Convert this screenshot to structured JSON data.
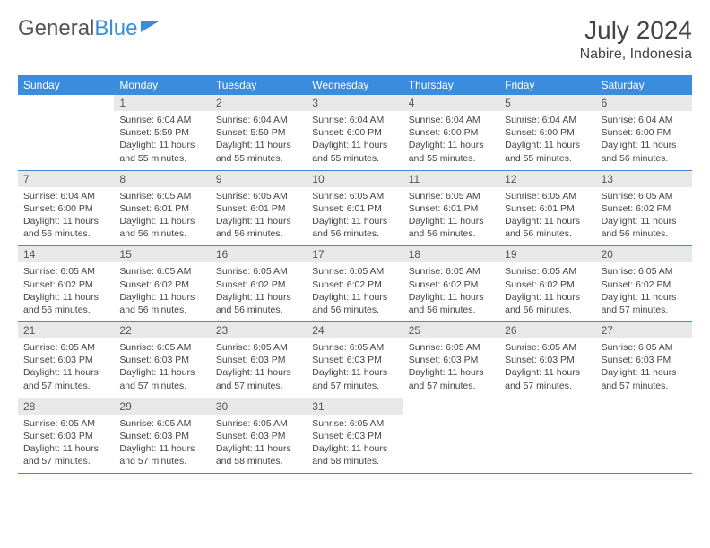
{
  "logo": {
    "part1": "General",
    "part2": "Blue"
  },
  "title": "July 2024",
  "location": "Nabire, Indonesia",
  "colors": {
    "header_bg": "#3a8dde",
    "daynum_bg": "#e8e8e8",
    "text": "#444444",
    "border": "#3a8dde"
  },
  "weekdays": [
    "Sunday",
    "Monday",
    "Tuesday",
    "Wednesday",
    "Thursday",
    "Friday",
    "Saturday"
  ],
  "weeks": [
    [
      {
        "empty": true
      },
      {
        "n": "1",
        "sr": "Sunrise: 6:04 AM",
        "ss": "Sunset: 5:59 PM",
        "dl": "Daylight: 11 hours and 55 minutes."
      },
      {
        "n": "2",
        "sr": "Sunrise: 6:04 AM",
        "ss": "Sunset: 5:59 PM",
        "dl": "Daylight: 11 hours and 55 minutes."
      },
      {
        "n": "3",
        "sr": "Sunrise: 6:04 AM",
        "ss": "Sunset: 6:00 PM",
        "dl": "Daylight: 11 hours and 55 minutes."
      },
      {
        "n": "4",
        "sr": "Sunrise: 6:04 AM",
        "ss": "Sunset: 6:00 PM",
        "dl": "Daylight: 11 hours and 55 minutes."
      },
      {
        "n": "5",
        "sr": "Sunrise: 6:04 AM",
        "ss": "Sunset: 6:00 PM",
        "dl": "Daylight: 11 hours and 55 minutes."
      },
      {
        "n": "6",
        "sr": "Sunrise: 6:04 AM",
        "ss": "Sunset: 6:00 PM",
        "dl": "Daylight: 11 hours and 56 minutes."
      }
    ],
    [
      {
        "n": "7",
        "sr": "Sunrise: 6:04 AM",
        "ss": "Sunset: 6:00 PM",
        "dl": "Daylight: 11 hours and 56 minutes."
      },
      {
        "n": "8",
        "sr": "Sunrise: 6:05 AM",
        "ss": "Sunset: 6:01 PM",
        "dl": "Daylight: 11 hours and 56 minutes."
      },
      {
        "n": "9",
        "sr": "Sunrise: 6:05 AM",
        "ss": "Sunset: 6:01 PM",
        "dl": "Daylight: 11 hours and 56 minutes."
      },
      {
        "n": "10",
        "sr": "Sunrise: 6:05 AM",
        "ss": "Sunset: 6:01 PM",
        "dl": "Daylight: 11 hours and 56 minutes."
      },
      {
        "n": "11",
        "sr": "Sunrise: 6:05 AM",
        "ss": "Sunset: 6:01 PM",
        "dl": "Daylight: 11 hours and 56 minutes."
      },
      {
        "n": "12",
        "sr": "Sunrise: 6:05 AM",
        "ss": "Sunset: 6:01 PM",
        "dl": "Daylight: 11 hours and 56 minutes."
      },
      {
        "n": "13",
        "sr": "Sunrise: 6:05 AM",
        "ss": "Sunset: 6:02 PM",
        "dl": "Daylight: 11 hours and 56 minutes."
      }
    ],
    [
      {
        "n": "14",
        "sr": "Sunrise: 6:05 AM",
        "ss": "Sunset: 6:02 PM",
        "dl": "Daylight: 11 hours and 56 minutes."
      },
      {
        "n": "15",
        "sr": "Sunrise: 6:05 AM",
        "ss": "Sunset: 6:02 PM",
        "dl": "Daylight: 11 hours and 56 minutes."
      },
      {
        "n": "16",
        "sr": "Sunrise: 6:05 AM",
        "ss": "Sunset: 6:02 PM",
        "dl": "Daylight: 11 hours and 56 minutes."
      },
      {
        "n": "17",
        "sr": "Sunrise: 6:05 AM",
        "ss": "Sunset: 6:02 PM",
        "dl": "Daylight: 11 hours and 56 minutes."
      },
      {
        "n": "18",
        "sr": "Sunrise: 6:05 AM",
        "ss": "Sunset: 6:02 PM",
        "dl": "Daylight: 11 hours and 56 minutes."
      },
      {
        "n": "19",
        "sr": "Sunrise: 6:05 AM",
        "ss": "Sunset: 6:02 PM",
        "dl": "Daylight: 11 hours and 56 minutes."
      },
      {
        "n": "20",
        "sr": "Sunrise: 6:05 AM",
        "ss": "Sunset: 6:02 PM",
        "dl": "Daylight: 11 hours and 57 minutes."
      }
    ],
    [
      {
        "n": "21",
        "sr": "Sunrise: 6:05 AM",
        "ss": "Sunset: 6:03 PM",
        "dl": "Daylight: 11 hours and 57 minutes."
      },
      {
        "n": "22",
        "sr": "Sunrise: 6:05 AM",
        "ss": "Sunset: 6:03 PM",
        "dl": "Daylight: 11 hours and 57 minutes."
      },
      {
        "n": "23",
        "sr": "Sunrise: 6:05 AM",
        "ss": "Sunset: 6:03 PM",
        "dl": "Daylight: 11 hours and 57 minutes."
      },
      {
        "n": "24",
        "sr": "Sunrise: 6:05 AM",
        "ss": "Sunset: 6:03 PM",
        "dl": "Daylight: 11 hours and 57 minutes."
      },
      {
        "n": "25",
        "sr": "Sunrise: 6:05 AM",
        "ss": "Sunset: 6:03 PM",
        "dl": "Daylight: 11 hours and 57 minutes."
      },
      {
        "n": "26",
        "sr": "Sunrise: 6:05 AM",
        "ss": "Sunset: 6:03 PM",
        "dl": "Daylight: 11 hours and 57 minutes."
      },
      {
        "n": "27",
        "sr": "Sunrise: 6:05 AM",
        "ss": "Sunset: 6:03 PM",
        "dl": "Daylight: 11 hours and 57 minutes."
      }
    ],
    [
      {
        "n": "28",
        "sr": "Sunrise: 6:05 AM",
        "ss": "Sunset: 6:03 PM",
        "dl": "Daylight: 11 hours and 57 minutes."
      },
      {
        "n": "29",
        "sr": "Sunrise: 6:05 AM",
        "ss": "Sunset: 6:03 PM",
        "dl": "Daylight: 11 hours and 57 minutes."
      },
      {
        "n": "30",
        "sr": "Sunrise: 6:05 AM",
        "ss": "Sunset: 6:03 PM",
        "dl": "Daylight: 11 hours and 58 minutes."
      },
      {
        "n": "31",
        "sr": "Sunrise: 6:05 AM",
        "ss": "Sunset: 6:03 PM",
        "dl": "Daylight: 11 hours and 58 minutes."
      },
      {
        "empty": true
      },
      {
        "empty": true
      },
      {
        "empty": true
      }
    ]
  ]
}
